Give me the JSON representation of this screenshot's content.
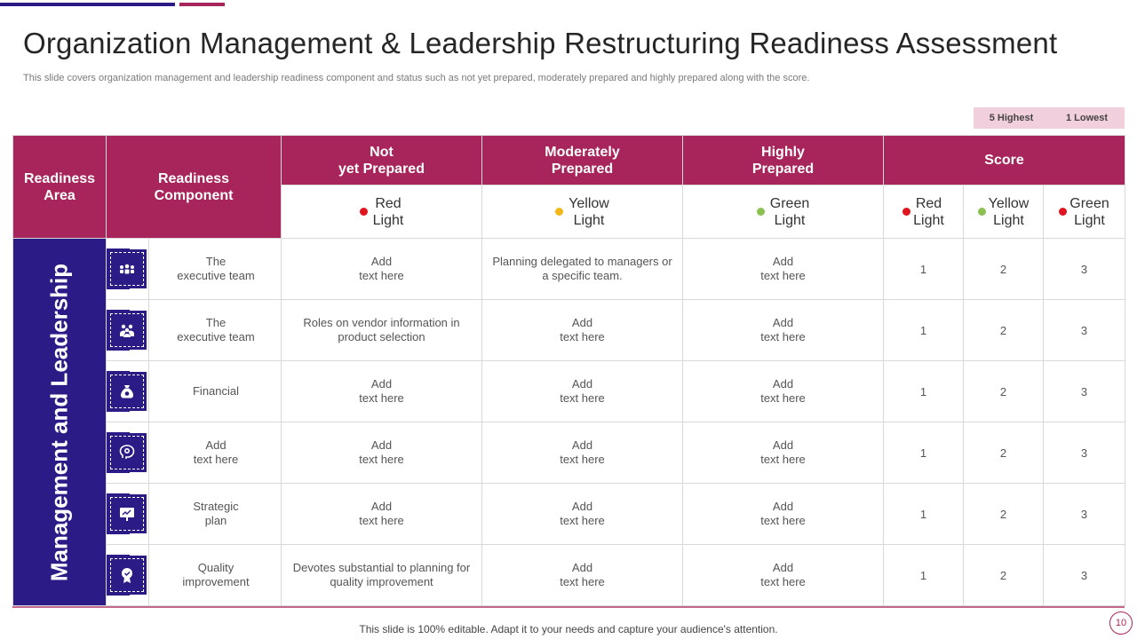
{
  "title": "Organization Management & Leadership Restructuring Readiness Assessment",
  "subtitle": "This slide covers organization management and leadership readiness component and status such as not yet prepared, moderately prepared and highly prepared along with the score.",
  "legend": {
    "highest": "5 Highest",
    "lowest": "1 Lowest"
  },
  "colors": {
    "primary": "#a8255b",
    "secondary": "#2b1b86",
    "red": "#e0141e",
    "yellow": "#f2b81a",
    "green": "#8cc152"
  },
  "header": {
    "area": "Readiness\nArea",
    "component": "Readiness\nComponent",
    "not_prepared": "Not\nyet Prepared",
    "moderately": "Moderately\nPrepared",
    "highly": "Highly\nPrepared",
    "score": "Score"
  },
  "lights": {
    "red": "Red\nLight",
    "yellow": "Yellow\nLight",
    "green": "Green\nLight"
  },
  "band_label": "Management and Leadership",
  "rows": [
    {
      "icon": "team-icon",
      "component": "The\nexecutive team",
      "not": "Add\ntext here",
      "mod": "Planning delegated to managers or a specific team.",
      "high": "Add\ntext here",
      "s1": "1",
      "s2": "2",
      "s3": "3"
    },
    {
      "icon": "group-icon",
      "component": "The\nexecutive team",
      "not": "Roles on vendor information in product selection",
      "mod": "Add\ntext here",
      "high": "Add\ntext here",
      "s1": "1",
      "s2": "2",
      "s3": "3"
    },
    {
      "icon": "money-bag-icon",
      "component": "Financial",
      "not": "Add\ntext here",
      "mod": "Add\ntext here",
      "high": "Add\ntext here",
      "s1": "1",
      "s2": "2",
      "s3": "3"
    },
    {
      "icon": "idea-head-icon",
      "component": "Add\ntext here",
      "not": "Add\ntext here",
      "mod": "Add\ntext here",
      "high": "Add\ntext here",
      "s1": "1",
      "s2": "2",
      "s3": "3"
    },
    {
      "icon": "strategy-board-icon",
      "component": "Strategic\nplan",
      "not": "Add\ntext here",
      "mod": "Add\ntext here",
      "high": "Add\ntext here",
      "s1": "1",
      "s2": "2",
      "s3": "3"
    },
    {
      "icon": "quality-badge-icon",
      "component": "Quality\nimprovement",
      "not": "Devotes substantial to planning for quality improvement",
      "mod": "Add\ntext here",
      "high": "Add\ntext here",
      "s1": "1",
      "s2": "2",
      "s3": "3"
    }
  ],
  "footer": "This slide is 100% editable. Adapt it to your needs and capture your audience's attention.",
  "page_number": "10"
}
